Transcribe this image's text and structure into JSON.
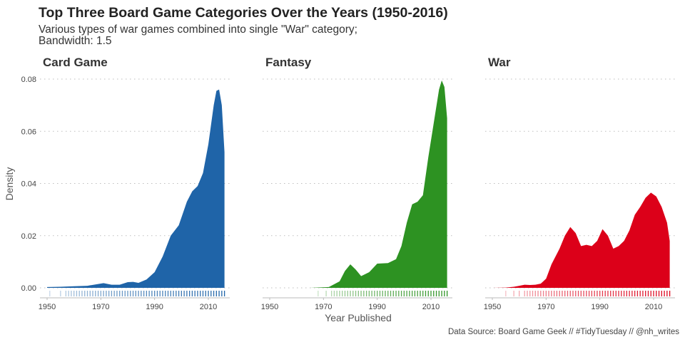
{
  "chart_data": {
    "type": "area",
    "title": "Top Three Board Game Categories Over the Years (1950-2016)",
    "subtitle_lines": [
      "Various types of war games combined into single \"War\" category;",
      "Bandwidth: 1.5"
    ],
    "xlabel": "Year Published",
    "ylabel": "Density",
    "caption": "Data Source: Board Game Geek // #TidyTuesday // @nh_writes",
    "xlim": [
      1950,
      2016
    ],
    "ylim": [
      0,
      0.08
    ],
    "x_ticks": [
      1950,
      1970,
      1990,
      2010
    ],
    "x_tick_labels": [
      "1950",
      "1970",
      "1990",
      "2010"
    ],
    "y_ticks": [
      0,
      0.02,
      0.04,
      0.06,
      0.08
    ],
    "y_tick_labels": [
      "0.00",
      "0.02",
      "0.04",
      "0.06",
      "0.08"
    ],
    "grid": "horizontal-dotted",
    "rug": true,
    "panels": [
      {
        "name": "Card Game",
        "color": "#1f64a8",
        "x": [
          1950,
          1955,
          1960,
          1965,
          1968,
          1971,
          1974,
          1977,
          1980,
          1982,
          1984,
          1987,
          1990,
          1993,
          1996,
          1999,
          2002,
          2004,
          2006,
          2008,
          2010,
          2012,
          2013,
          2014,
          2015,
          2016
        ],
        "y": [
          0.0003,
          0.0004,
          0.0006,
          0.0008,
          0.0013,
          0.0018,
          0.0012,
          0.0012,
          0.0022,
          0.0023,
          0.0019,
          0.0032,
          0.006,
          0.012,
          0.02,
          0.024,
          0.033,
          0.037,
          0.039,
          0.044,
          0.055,
          0.07,
          0.0755,
          0.076,
          0.07,
          0.052
        ],
        "rug_years": [
          1951,
          1955,
          1957,
          1958,
          1959,
          1960,
          1961,
          1962,
          1963,
          1964,
          1965,
          1966,
          1967,
          1968,
          1969,
          1970,
          1971,
          1972,
          1973,
          1974,
          1975,
          1976,
          1977,
          1978,
          1979,
          1980,
          1981,
          1982,
          1983,
          1984,
          1985,
          1986,
          1987,
          1988,
          1989,
          1990,
          1991,
          1992,
          1993,
          1994,
          1995,
          1996,
          1997,
          1998,
          1999,
          2000,
          2001,
          2002,
          2003,
          2004,
          2005,
          2006,
          2007,
          2008,
          2009,
          2010,
          2011,
          2012,
          2013,
          2014,
          2015,
          2016
        ]
      },
      {
        "name": "Fantasy",
        "color": "#2d9222",
        "x": [
          1950,
          1965,
          1972,
          1976,
          1978,
          1980,
          1982,
          1984,
          1987,
          1990,
          1994,
          1997,
          1999,
          2001,
          2003,
          2005,
          2007,
          2009,
          2011,
          2013,
          2014,
          2015,
          2016
        ],
        "y": [
          0,
          0,
          0.0003,
          0.0025,
          0.0065,
          0.009,
          0.007,
          0.0045,
          0.006,
          0.0093,
          0.0095,
          0.011,
          0.016,
          0.025,
          0.032,
          0.033,
          0.0355,
          0.05,
          0.063,
          0.076,
          0.0795,
          0.077,
          0.065
        ],
        "rug_years": [
          1968,
          1971,
          1973,
          1974,
          1975,
          1976,
          1977,
          1978,
          1979,
          1980,
          1981,
          1982,
          1983,
          1984,
          1985,
          1986,
          1987,
          1988,
          1989,
          1990,
          1991,
          1992,
          1993,
          1994,
          1995,
          1996,
          1997,
          1998,
          1999,
          2000,
          2001,
          2002,
          2003,
          2004,
          2005,
          2006,
          2007,
          2008,
          2009,
          2010,
          2011,
          2012,
          2013,
          2014,
          2015,
          2016
        ]
      },
      {
        "name": "War",
        "color": "#dc0019",
        "x": [
          1950,
          1955,
          1958,
          1960,
          1962,
          1964,
          1966,
          1968,
          1970,
          1972,
          1975,
          1977,
          1979,
          1981,
          1983,
          1985,
          1987,
          1989,
          1991,
          1993,
          1995,
          1997,
          1999,
          2001,
          2003,
          2005,
          2007,
          2009,
          2011,
          2013,
          2015,
          2016
        ],
        "y": [
          0,
          0.0001,
          0.0004,
          0.0008,
          0.0012,
          0.0011,
          0.0012,
          0.0016,
          0.0035,
          0.009,
          0.015,
          0.02,
          0.0233,
          0.021,
          0.016,
          0.0165,
          0.016,
          0.018,
          0.0225,
          0.02,
          0.015,
          0.016,
          0.018,
          0.022,
          0.028,
          0.031,
          0.0345,
          0.0365,
          0.035,
          0.031,
          0.025,
          0.018
        ],
        "rug_years": [
          1955,
          1958,
          1960,
          1962,
          1963,
          1964,
          1965,
          1966,
          1967,
          1968,
          1969,
          1970,
          1971,
          1972,
          1973,
          1974,
          1975,
          1976,
          1977,
          1978,
          1979,
          1980,
          1981,
          1982,
          1983,
          1984,
          1985,
          1986,
          1987,
          1988,
          1989,
          1990,
          1991,
          1992,
          1993,
          1994,
          1995,
          1996,
          1997,
          1998,
          1999,
          2000,
          2001,
          2002,
          2003,
          2004,
          2005,
          2006,
          2007,
          2008,
          2009,
          2010,
          2011,
          2012,
          2013,
          2014,
          2015,
          2016
        ]
      }
    ]
  }
}
